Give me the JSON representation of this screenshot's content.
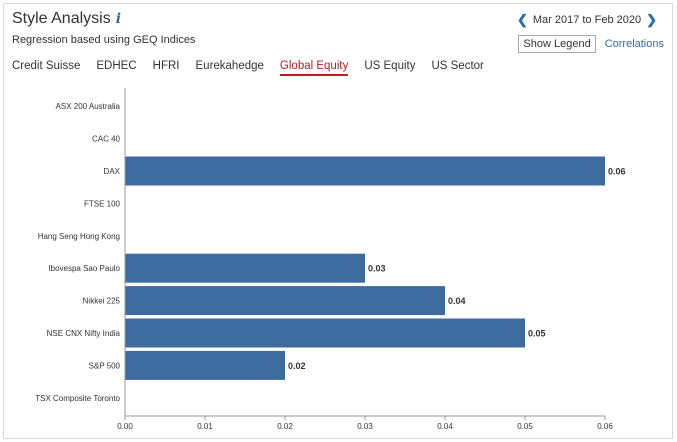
{
  "header": {
    "title": "Style Analysis",
    "info_icon": "info-icon",
    "subtitle": "Regression based using GEQ Indices",
    "date_range": "Mar 2017 to Feb 2020",
    "show_legend_label": "Show Legend",
    "correlations_label": "Correlations"
  },
  "tabs": [
    {
      "label": "Credit Suisse",
      "active": false
    },
    {
      "label": "EDHEC",
      "active": false
    },
    {
      "label": "HFRI",
      "active": false
    },
    {
      "label": "Eurekahedge",
      "active": false
    },
    {
      "label": "Global Equity",
      "active": true
    },
    {
      "label": "US Equity",
      "active": false
    },
    {
      "label": "US Sector",
      "active": false
    }
  ],
  "colors": {
    "bar": "#3e6b9e",
    "accent": "#b22222",
    "link": "#2e6da4"
  },
  "chart_data": {
    "type": "bar",
    "orientation": "horizontal",
    "categories": [
      "ASX 200 Australia",
      "CAC 40",
      "DAX",
      "FTSE 100",
      "Hang Seng Hong Kong",
      "Ibovespa Sao Paulo",
      "Nikkei 225",
      "NSE CNX Nifty India",
      "S&P 500",
      "TSX Composite Toronto"
    ],
    "values": [
      0,
      0,
      0.06,
      0,
      0,
      0.03,
      0.04,
      0.05,
      0.02,
      0
    ],
    "value_labels": [
      "",
      "",
      "0.06",
      "",
      "",
      "0.03",
      "0.04",
      "0.05",
      "0.02",
      ""
    ],
    "x_ticks": [
      "0.00",
      "0.01",
      "0.02",
      "0.03",
      "0.04",
      "0.05",
      "0.06"
    ],
    "xlim": [
      0,
      0.06
    ],
    "grid": false,
    "legend": "hidden"
  }
}
